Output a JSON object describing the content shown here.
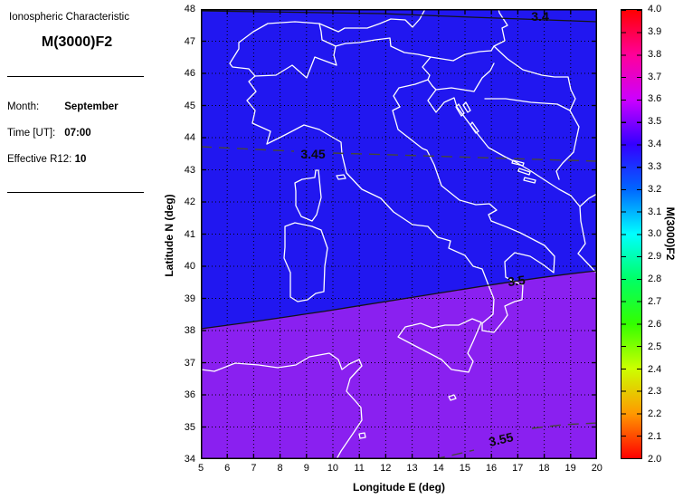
{
  "sidebar": {
    "heading": "Ionospheric Characteristic",
    "title": "M(3000)F2",
    "rows": [
      {
        "label": "Month:",
        "value": "September"
      },
      {
        "label": "Time [UT]:",
        "value": "07:00"
      },
      {
        "label": "Effective R12:",
        "value": "10"
      }
    ]
  },
  "chart_data": {
    "type": "heatmap",
    "subtype": "filled-contour-map-over-italy",
    "parameter": "M(3000)F2",
    "month": "September",
    "time_ut": "07:00",
    "effective_r12": "10",
    "xlabel": "Longitude E (deg)",
    "ylabel": "Latitude N (deg)",
    "xlim": [
      5,
      20
    ],
    "ylim": [
      34,
      48
    ],
    "grid": true,
    "x_ticks": [
      "5",
      "6",
      "7",
      "8",
      "9",
      "10",
      "11",
      "12",
      "13",
      "14",
      "15",
      "16",
      "17",
      "18",
      "19",
      "20"
    ],
    "y_ticks": [
      "48",
      "47",
      "46",
      "45",
      "44",
      "43",
      "42",
      "41",
      "40",
      "39",
      "38",
      "37",
      "36",
      "35",
      "34"
    ],
    "contours": [
      {
        "level": "3.4",
        "style": "solid",
        "approx_lat_at_lon12": 47.8
      },
      {
        "level": "3.45",
        "style": "dashed",
        "approx_lat_at_lon12": 43.6
      },
      {
        "level": "3.5",
        "style": "solid",
        "approx_lat_at_lon12": 39.0
      },
      {
        "level": "3.55",
        "style": "dashed",
        "approx_lat_at_lon12": 33.9
      }
    ],
    "bands": [
      {
        "range": "3.4-3.5",
        "color": "#2117f0",
        "region": "north of 3.5 contour"
      },
      {
        "range": "3.5-3.6",
        "color": "#8a20f0",
        "region": "south of 3.5 contour"
      }
    ],
    "coastline_color": "#ffffff",
    "colorbar": {
      "label": "M(3000)F2",
      "min": 2.0,
      "max": 4.0,
      "tick_step": 0.1,
      "scheme": "hsv red-to-red spectrum",
      "ticks": [
        "4.0",
        "3.9",
        "3.8",
        "3.7",
        "3.6",
        "3.5",
        "3.4",
        "3.3",
        "3.2",
        "3.1",
        "3.0",
        "2.9",
        "2.8",
        "2.7",
        "2.6",
        "2.5",
        "2.4",
        "2.3",
        "2.2",
        "2.1",
        "2.0"
      ]
    }
  }
}
